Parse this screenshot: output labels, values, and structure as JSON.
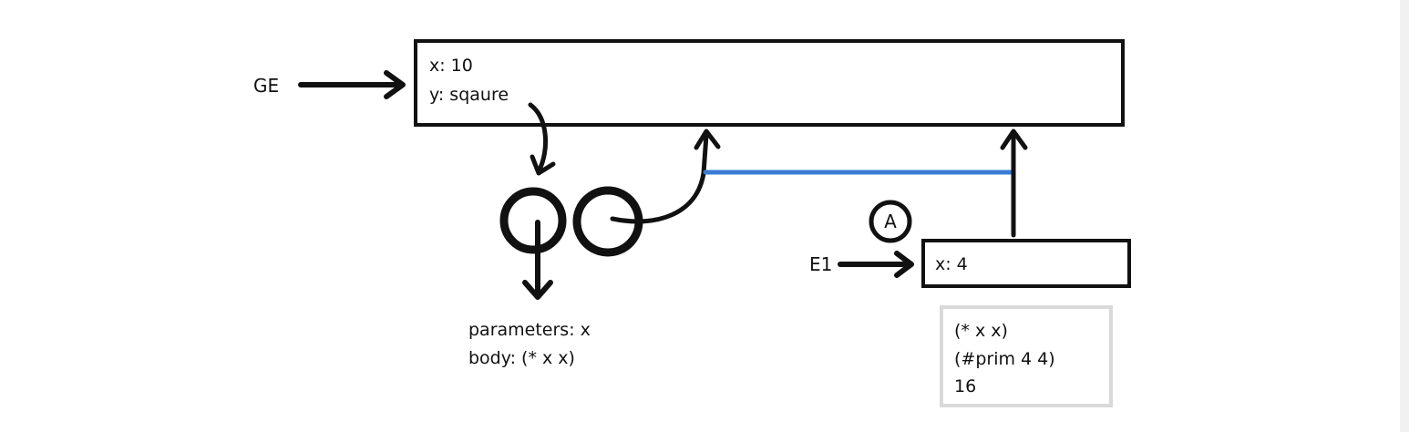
{
  "global_env": {
    "label": "GE",
    "bindings": [
      "x: 10",
      "y: sqaure"
    ]
  },
  "procedure": {
    "parameters": "parameters: x",
    "body": "body: (* x x)"
  },
  "frame_e1": {
    "label": "E1",
    "bindings": [
      "x: 4"
    ],
    "marker": "A"
  },
  "evaluation": {
    "steps": [
      "(* x x)",
      "(#prim 4 4)",
      "16"
    ]
  },
  "colors": {
    "ink": "#111111",
    "link": "#3a7bd5",
    "eval_border": "#d9d9d9"
  }
}
